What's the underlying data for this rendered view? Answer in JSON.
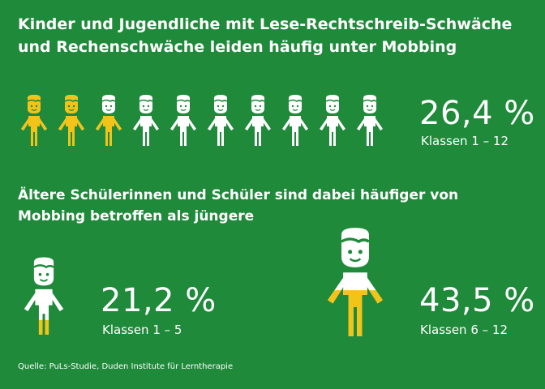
{
  "header": {
    "title_line1": "Kinder und Jugendliche mit Lese-Rechtschreib-Schwäche",
    "title_line2": "und Rechenschwäche leiden häufig unter Mobbing"
  },
  "section2": {
    "title_line1": "Ältere Schülerinnen und Schüler sind dabei häufiger von",
    "title_line2": "Mobbing betroffen als jüngere"
  },
  "footer": {
    "source": "Quelle: PuLs-Studie, Duden Institute für Lerntherapie"
  },
  "colors": {
    "background": "#1e8a3a",
    "highlight": "#f2c318",
    "figure": "#ffffff",
    "outline": "#1e8a3a"
  },
  "chart_data": [
    {
      "type": "pictogram",
      "icons_total": 10,
      "value": 26.4,
      "value_label": "26,4 %",
      "sublabel": "Klassen 1 – 12",
      "fill_fraction": 0.264
    },
    {
      "type": "pictogram",
      "icons_total": 1,
      "value": 21.2,
      "value_label": "21,2 %",
      "sublabel": "Klassen 1 – 5",
      "fill_fraction": 0.212
    },
    {
      "type": "pictogram",
      "icons_total": 1,
      "value": 43.5,
      "value_label": "43,5 %",
      "sublabel": "Klassen 6 – 12",
      "fill_fraction": 0.435
    }
  ]
}
